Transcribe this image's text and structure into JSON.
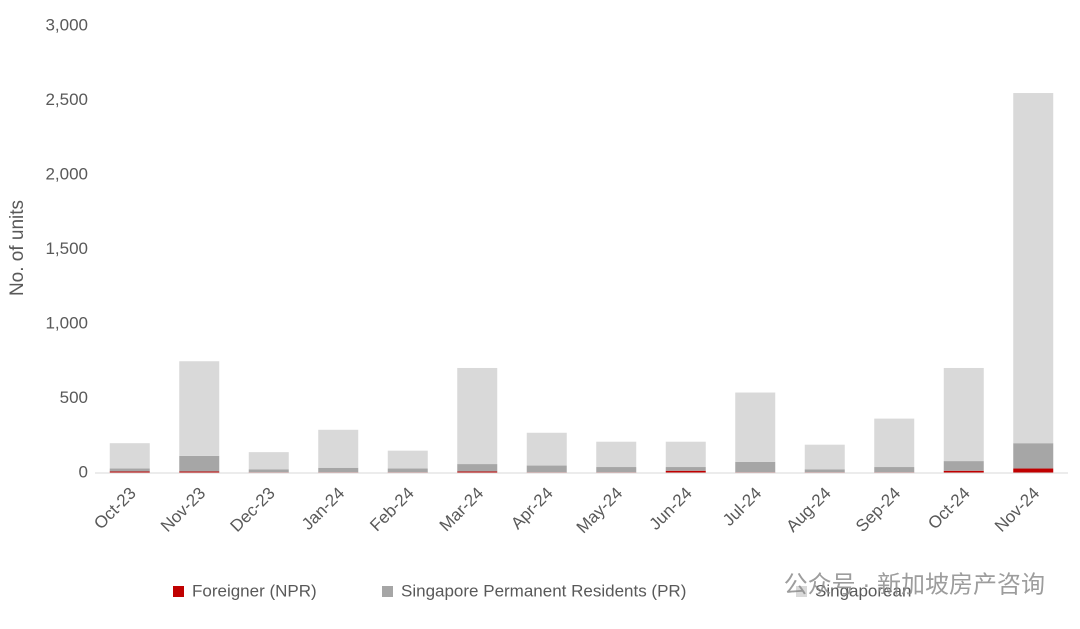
{
  "chart_data": {
    "type": "stacked_bar",
    "y_label": "No. of units",
    "categories": [
      "Oct-23",
      "Nov-23",
      "Dec-23",
      "Jan-24",
      "Feb-24",
      "Mar-24",
      "Apr-24",
      "May-24",
      "Jun-24",
      "Jul-24",
      "Aug-24",
      "Sep-24",
      "Oct-24",
      "Nov-24"
    ],
    "series": [
      {
        "name": "Foreigner (NPR)",
        "color": "#c00000",
        "values": [
          10,
          10,
          5,
          5,
          5,
          10,
          5,
          5,
          15,
          5,
          5,
          5,
          15,
          30
        ]
      },
      {
        "name": "Singapore Permanent Residents (PR)",
        "color": "#a6a6a6",
        "values": [
          20,
          105,
          20,
          30,
          25,
          50,
          45,
          35,
          25,
          70,
          20,
          35,
          65,
          170
        ]
      },
      {
        "name": "Singaporean",
        "color": "#d9d9d9",
        "values": [
          170,
          635,
          115,
          255,
          120,
          645,
          220,
          170,
          170,
          465,
          165,
          325,
          625,
          2350
        ]
      }
    ],
    "ylim": [
      0,
      3000
    ],
    "yticks": [
      0,
      500,
      {
        "value": 1000,
        "label": "1,000"
      },
      {
        "value": 1500,
        "label": "1,500"
      },
      {
        "value": 2000,
        "label": "2,000"
      },
      {
        "value": 2500,
        "label": "2,500"
      },
      {
        "value": 3000,
        "label": "3,000"
      }
    ],
    "watermark": "公众号 · 新加坡房产咨询"
  }
}
